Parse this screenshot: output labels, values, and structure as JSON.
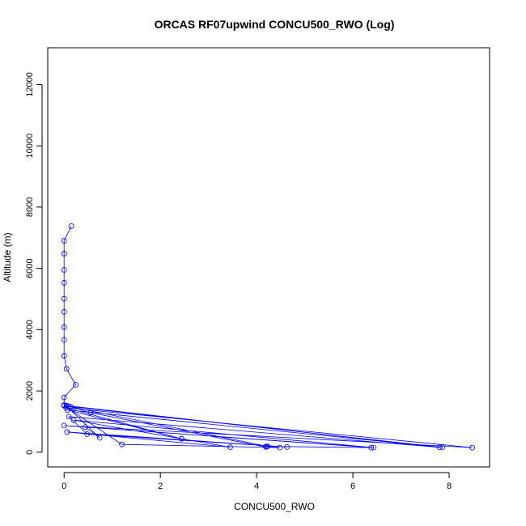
{
  "chart_data": {
    "type": "line",
    "title": "ORCAS RF07upwind CONCU500_RWO (Log)",
    "xlabel": "CONCU500_RWO",
    "ylabel": "Altitude (m)",
    "xlim": [
      -0.34,
      8.84
    ],
    "ylim": [
      -480,
      13200
    ],
    "xticks": [
      0,
      2,
      4,
      6,
      8
    ],
    "yticks": [
      0,
      2000,
      4000,
      6000,
      8000,
      10000,
      12000
    ],
    "grid": false,
    "line_color": "#0000ff",
    "series": [
      {
        "points": [
          [
            0.15,
            7380
          ],
          [
            0.0,
            6900
          ],
          [
            0.0,
            6480
          ],
          [
            0.0,
            5950
          ],
          [
            0.0,
            5530
          ],
          [
            0.0,
            5010
          ],
          [
            0.0,
            4580
          ],
          [
            0.0,
            4080
          ],
          [
            0.0,
            3670
          ],
          [
            0.0,
            3150
          ],
          [
            0.05,
            2720
          ],
          [
            0.24,
            2200
          ],
          [
            0.0,
            1790
          ],
          [
            0.0,
            1540
          ],
          [
            0.1,
            1500
          ],
          [
            0.55,
            1290
          ],
          [
            4.19,
            170
          ],
          [
            4.2,
            190
          ],
          [
            4.48,
            150
          ],
          [
            1.2,
            255
          ],
          [
            0.0,
            1520
          ],
          [
            0.14,
            1480
          ],
          [
            4.23,
            190
          ],
          [
            6.38,
            150
          ],
          [
            0.44,
            820
          ],
          [
            0.74,
            470
          ],
          [
            0.05,
            1500
          ],
          [
            7.86,
            160
          ],
          [
            0.07,
            1380
          ],
          [
            2.44,
            440
          ],
          [
            0.04,
            1450
          ],
          [
            8.48,
            150
          ],
          [
            0.0,
            870
          ],
          [
            6.43,
            150
          ],
          [
            0.2,
            1050
          ],
          [
            3.45,
            165
          ],
          [
            0.06,
            660
          ],
          [
            4.63,
            170
          ],
          [
            0.48,
            590
          ],
          [
            0.1,
            1160
          ],
          [
            7.8,
            160
          ],
          [
            0.05,
            1520
          ]
        ]
      }
    ]
  }
}
